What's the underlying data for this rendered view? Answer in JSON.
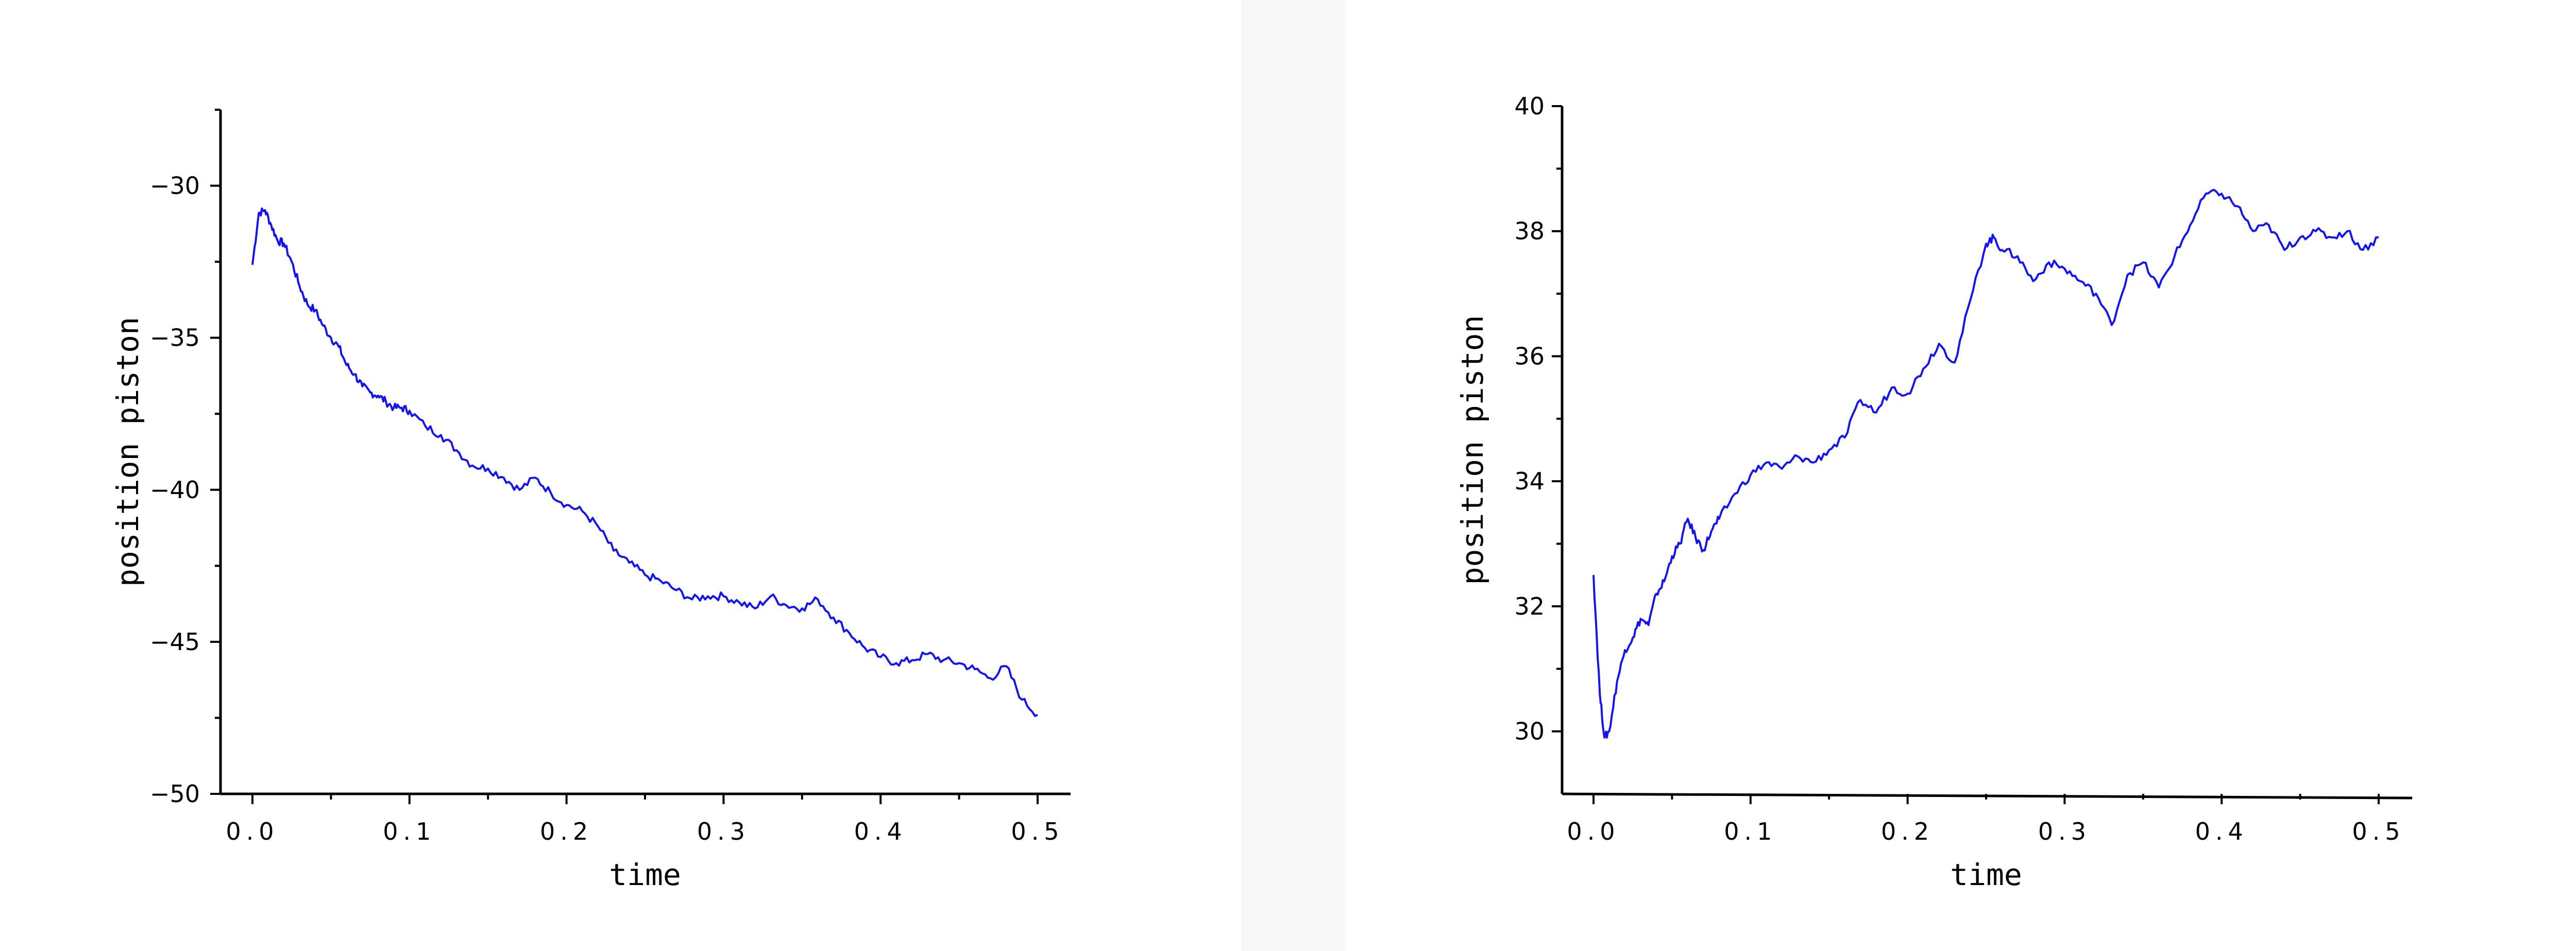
{
  "chart_data": [
    {
      "type": "line",
      "xlabel": "time",
      "ylabel": "position piston",
      "xlim": [
        0.0,
        0.5
      ],
      "ylim": [
        -50,
        -27.5
      ],
      "xticks": [
        "0.0",
        "0.1",
        "0.2",
        "0.3",
        "0.4",
        "0.5"
      ],
      "yticks": [
        "-30",
        "-35",
        "-40",
        "-45",
        "-50"
      ],
      "color": "#1414ee",
      "grid": false,
      "series": [
        {
          "x": [
            0.0,
            0.004,
            0.008,
            0.012,
            0.016,
            0.02,
            0.025,
            0.03,
            0.035,
            0.04,
            0.045,
            0.05,
            0.055,
            0.06,
            0.065,
            0.07,
            0.075,
            0.08,
            0.085,
            0.09,
            0.095,
            0.1,
            0.11,
            0.12,
            0.13,
            0.14,
            0.15,
            0.16,
            0.17,
            0.18,
            0.19,
            0.2,
            0.21,
            0.22,
            0.23,
            0.24,
            0.25,
            0.26,
            0.27,
            0.28,
            0.29,
            0.3,
            0.31,
            0.32,
            0.33,
            0.34,
            0.35,
            0.36,
            0.37,
            0.38,
            0.39,
            0.4,
            0.41,
            0.42,
            0.43,
            0.44,
            0.45,
            0.46,
            0.47,
            0.48,
            0.49,
            0.5
          ],
          "y": [
            -32.6,
            -30.9,
            -30.8,
            -31.3,
            -31.8,
            -31.9,
            -32.5,
            -33.3,
            -33.9,
            -34.1,
            -34.6,
            -35.0,
            -35.3,
            -35.9,
            -36.2,
            -36.6,
            -36.8,
            -36.9,
            -37.1,
            -37.3,
            -37.3,
            -37.4,
            -37.9,
            -38.2,
            -38.7,
            -39.2,
            -39.3,
            -39.6,
            -40.0,
            -39.6,
            -40.1,
            -40.5,
            -40.7,
            -41.2,
            -42.0,
            -42.4,
            -42.8,
            -43.0,
            -43.3,
            -43.6,
            -43.5,
            -43.5,
            -43.7,
            -43.9,
            -43.5,
            -43.8,
            -43.9,
            -43.6,
            -44.2,
            -44.7,
            -45.2,
            -45.5,
            -45.7,
            -45.6,
            -45.4,
            -45.6,
            -45.7,
            -45.9,
            -46.2,
            -45.8,
            -46.9,
            -47.4
          ]
        }
      ]
    },
    {
      "type": "line",
      "xlabel": "time",
      "ylabel": "position piston",
      "xlim": [
        0.0,
        0.5
      ],
      "ylim": [
        29,
        40
      ],
      "xticks": [
        "0.0",
        "0.1",
        "0.2",
        "0.3",
        "0.4",
        "0.5"
      ],
      "yticks": [
        "40",
        "38",
        "36",
        "34",
        "32",
        "30"
      ],
      "color": "#1414ee",
      "grid": false,
      "series": [
        {
          "x": [
            0.0,
            0.004,
            0.007,
            0.01,
            0.015,
            0.02,
            0.025,
            0.03,
            0.035,
            0.04,
            0.045,
            0.05,
            0.055,
            0.06,
            0.065,
            0.07,
            0.075,
            0.08,
            0.09,
            0.1,
            0.11,
            0.12,
            0.13,
            0.14,
            0.15,
            0.16,
            0.17,
            0.18,
            0.19,
            0.2,
            0.21,
            0.22,
            0.23,
            0.24,
            0.25,
            0.255,
            0.26,
            0.27,
            0.28,
            0.29,
            0.3,
            0.31,
            0.32,
            0.33,
            0.34,
            0.35,
            0.36,
            0.37,
            0.38,
            0.39,
            0.4,
            0.41,
            0.42,
            0.43,
            0.44,
            0.45,
            0.46,
            0.47,
            0.48,
            0.49,
            0.5
          ],
          "y": [
            32.5,
            30.6,
            29.9,
            30.0,
            30.8,
            31.3,
            31.5,
            31.8,
            31.7,
            32.2,
            32.4,
            32.8,
            33.0,
            33.4,
            33.1,
            32.9,
            33.2,
            33.4,
            33.8,
            34.1,
            34.3,
            34.2,
            34.4,
            34.3,
            34.5,
            34.7,
            35.3,
            35.1,
            35.5,
            35.4,
            35.8,
            36.2,
            35.9,
            36.9,
            37.8,
            37.9,
            37.7,
            37.6,
            37.2,
            37.5,
            37.4,
            37.2,
            37.0,
            36.5,
            37.3,
            37.5,
            37.1,
            37.6,
            38.1,
            38.6,
            38.6,
            38.4,
            38.0,
            38.1,
            37.7,
            37.9,
            38.0,
            37.9,
            38.0,
            37.7,
            37.9
          ]
        }
      ]
    }
  ]
}
